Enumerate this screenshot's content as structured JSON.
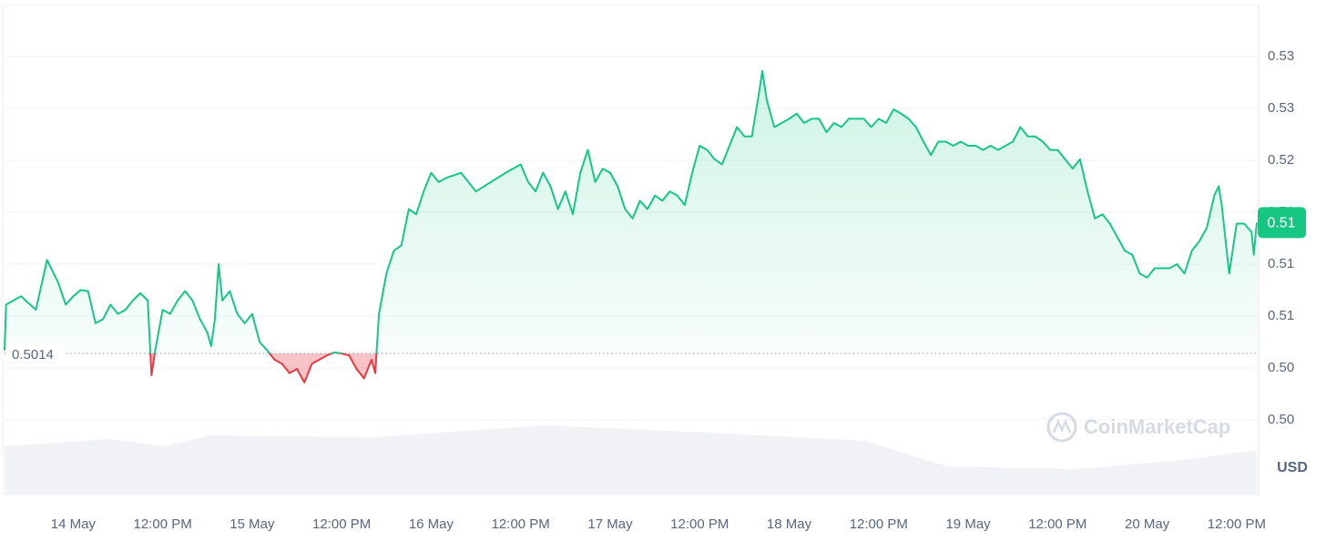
{
  "chart_data": {
    "type": "area",
    "up_color": "#16c784",
    "down_color": "#ea3943",
    "grid": true,
    "baseline": 0.5014,
    "current_price": {
      "value": 0.514,
      "label": "0.51"
    },
    "y_axis_label": "USD",
    "watermark": "CoinMarketCap",
    "xlim": [
      -9.2,
      158.7
    ],
    "xticks": [
      {
        "value": 0,
        "label": "14 May"
      },
      {
        "value": 12,
        "label": "12:00 PM"
      },
      {
        "value": 24,
        "label": "15 May"
      },
      {
        "value": 36,
        "label": "12:00 PM"
      },
      {
        "value": 48,
        "label": "16 May"
      },
      {
        "value": 60,
        "label": "12:00 PM"
      },
      {
        "value": 72,
        "label": "17 May"
      },
      {
        "value": 84,
        "label": "12:00 PM"
      },
      {
        "value": 96,
        "label": "18 May"
      },
      {
        "value": 108,
        "label": "12:00 PM"
      },
      {
        "value": 120,
        "label": "19 May"
      },
      {
        "value": 132,
        "label": "12:00 PM"
      },
      {
        "value": 144,
        "label": "20 May"
      },
      {
        "value": 156,
        "label": "12:00 PM"
      }
    ],
    "ylim": [
      0.4878,
      0.535
    ],
    "yticks": [
      {
        "value": 0.495,
        "label": "0.50"
      },
      {
        "value": 0.5,
        "label": "0.50"
      },
      {
        "value": 0.505,
        "label": "0.51"
      },
      {
        "value": 0.51,
        "label": "0.51"
      },
      {
        "value": 0.515,
        "label": "0.51"
      },
      {
        "value": 0.52,
        "label": "0.52"
      },
      {
        "value": 0.525,
        "label": "0.53"
      },
      {
        "value": 0.53,
        "label": "0.53"
      }
    ],
    "x": [
      -9.2,
      -9,
      -7,
      -5,
      -3.5,
      -2,
      -1,
      0,
      1,
      2,
      3,
      4,
      5,
      6,
      7,
      8,
      9,
      10,
      10.5,
      11,
      12,
      13,
      14,
      15,
      16,
      17,
      18,
      18.5,
      19,
      19.5,
      20,
      21,
      22,
      23,
      24,
      25,
      26,
      27,
      28,
      29,
      30,
      31,
      32,
      33,
      34,
      35,
      36,
      37,
      38,
      39,
      40,
      40.5,
      41,
      42,
      43,
      44,
      45,
      46,
      47,
      48,
      49,
      50,
      52,
      54,
      56,
      58,
      60,
      61,
      62,
      63,
      64,
      65,
      66,
      67,
      68,
      69,
      70,
      71,
      72,
      73,
      74,
      75,
      76,
      77,
      78,
      79,
      80,
      81,
      82,
      83,
      84,
      85,
      86,
      87,
      88,
      89,
      90,
      91,
      92,
      92.4,
      93,
      94,
      95,
      96,
      97,
      98,
      99,
      100,
      101,
      102,
      103,
      104,
      105,
      106,
      107,
      108,
      109,
      110,
      111,
      112,
      113,
      114,
      115,
      116,
      117,
      118,
      119,
      120,
      121,
      122,
      123,
      124,
      125,
      126,
      127,
      128,
      129,
      130,
      131,
      132,
      133,
      134,
      135,
      136,
      137,
      138,
      139,
      140,
      141,
      142,
      143,
      144,
      145,
      146,
      147,
      148,
      149,
      150,
      151,
      152,
      153,
      153.6,
      154,
      155,
      156,
      157,
      158,
      158.3,
      158.7
    ],
    "values": [
      0.5017,
      0.5061,
      0.5069,
      0.5056,
      0.5104,
      0.5082,
      0.5061,
      0.5069,
      0.5075,
      0.5074,
      0.5043,
      0.5047,
      0.5061,
      0.5052,
      0.5056,
      0.5065,
      0.5072,
      0.5065,
      0.4993,
      0.5017,
      0.5056,
      0.5052,
      0.5065,
      0.5074,
      0.5065,
      0.5047,
      0.5034,
      0.5021,
      0.5047,
      0.51,
      0.5065,
      0.5074,
      0.5052,
      0.5043,
      0.5052,
      0.5025,
      0.5017,
      0.5008,
      0.5004,
      0.4995,
      0.4999,
      0.4986,
      0.5004,
      0.5008,
      0.5012,
      0.5015,
      0.5014,
      0.5012,
      0.4999,
      0.499,
      0.5008,
      0.4995,
      0.5052,
      0.5091,
      0.5113,
      0.5118,
      0.5153,
      0.5148,
      0.517,
      0.5188,
      0.5179,
      0.5183,
      0.5188,
      0.517,
      0.5179,
      0.5188,
      0.5196,
      0.5179,
      0.517,
      0.5188,
      0.5175,
      0.5153,
      0.517,
      0.5148,
      0.5188,
      0.521,
      0.5179,
      0.5192,
      0.5188,
      0.5175,
      0.5153,
      0.5144,
      0.5161,
      0.5153,
      0.5166,
      0.5161,
      0.517,
      0.5166,
      0.5157,
      0.5188,
      0.5214,
      0.521,
      0.5201,
      0.5196,
      0.5214,
      0.5232,
      0.5223,
      0.5223,
      0.5267,
      0.5286,
      0.5258,
      0.5232,
      0.5236,
      0.524,
      0.5245,
      0.5236,
      0.524,
      0.524,
      0.5227,
      0.5236,
      0.5232,
      0.524,
      0.524,
      0.524,
      0.5232,
      0.524,
      0.5236,
      0.5249,
      0.5245,
      0.524,
      0.5232,
      0.5218,
      0.5205,
      0.5218,
      0.5218,
      0.5214,
      0.5218,
      0.5214,
      0.5214,
      0.521,
      0.5214,
      0.521,
      0.5214,
      0.5218,
      0.5232,
      0.5223,
      0.5223,
      0.5218,
      0.521,
      0.521,
      0.5201,
      0.5192,
      0.5201,
      0.517,
      0.5144,
      0.5148,
      0.5139,
      0.5126,
      0.5113,
      0.5109,
      0.5091,
      0.5087,
      0.5096,
      0.5096,
      0.5096,
      0.51,
      0.5091,
      0.5113,
      0.5122,
      0.5135,
      0.5166,
      0.5175,
      0.5157,
      0.5091,
      0.5139,
      0.5139,
      0.5131,
      0.5109,
      0.514
    ]
  }
}
